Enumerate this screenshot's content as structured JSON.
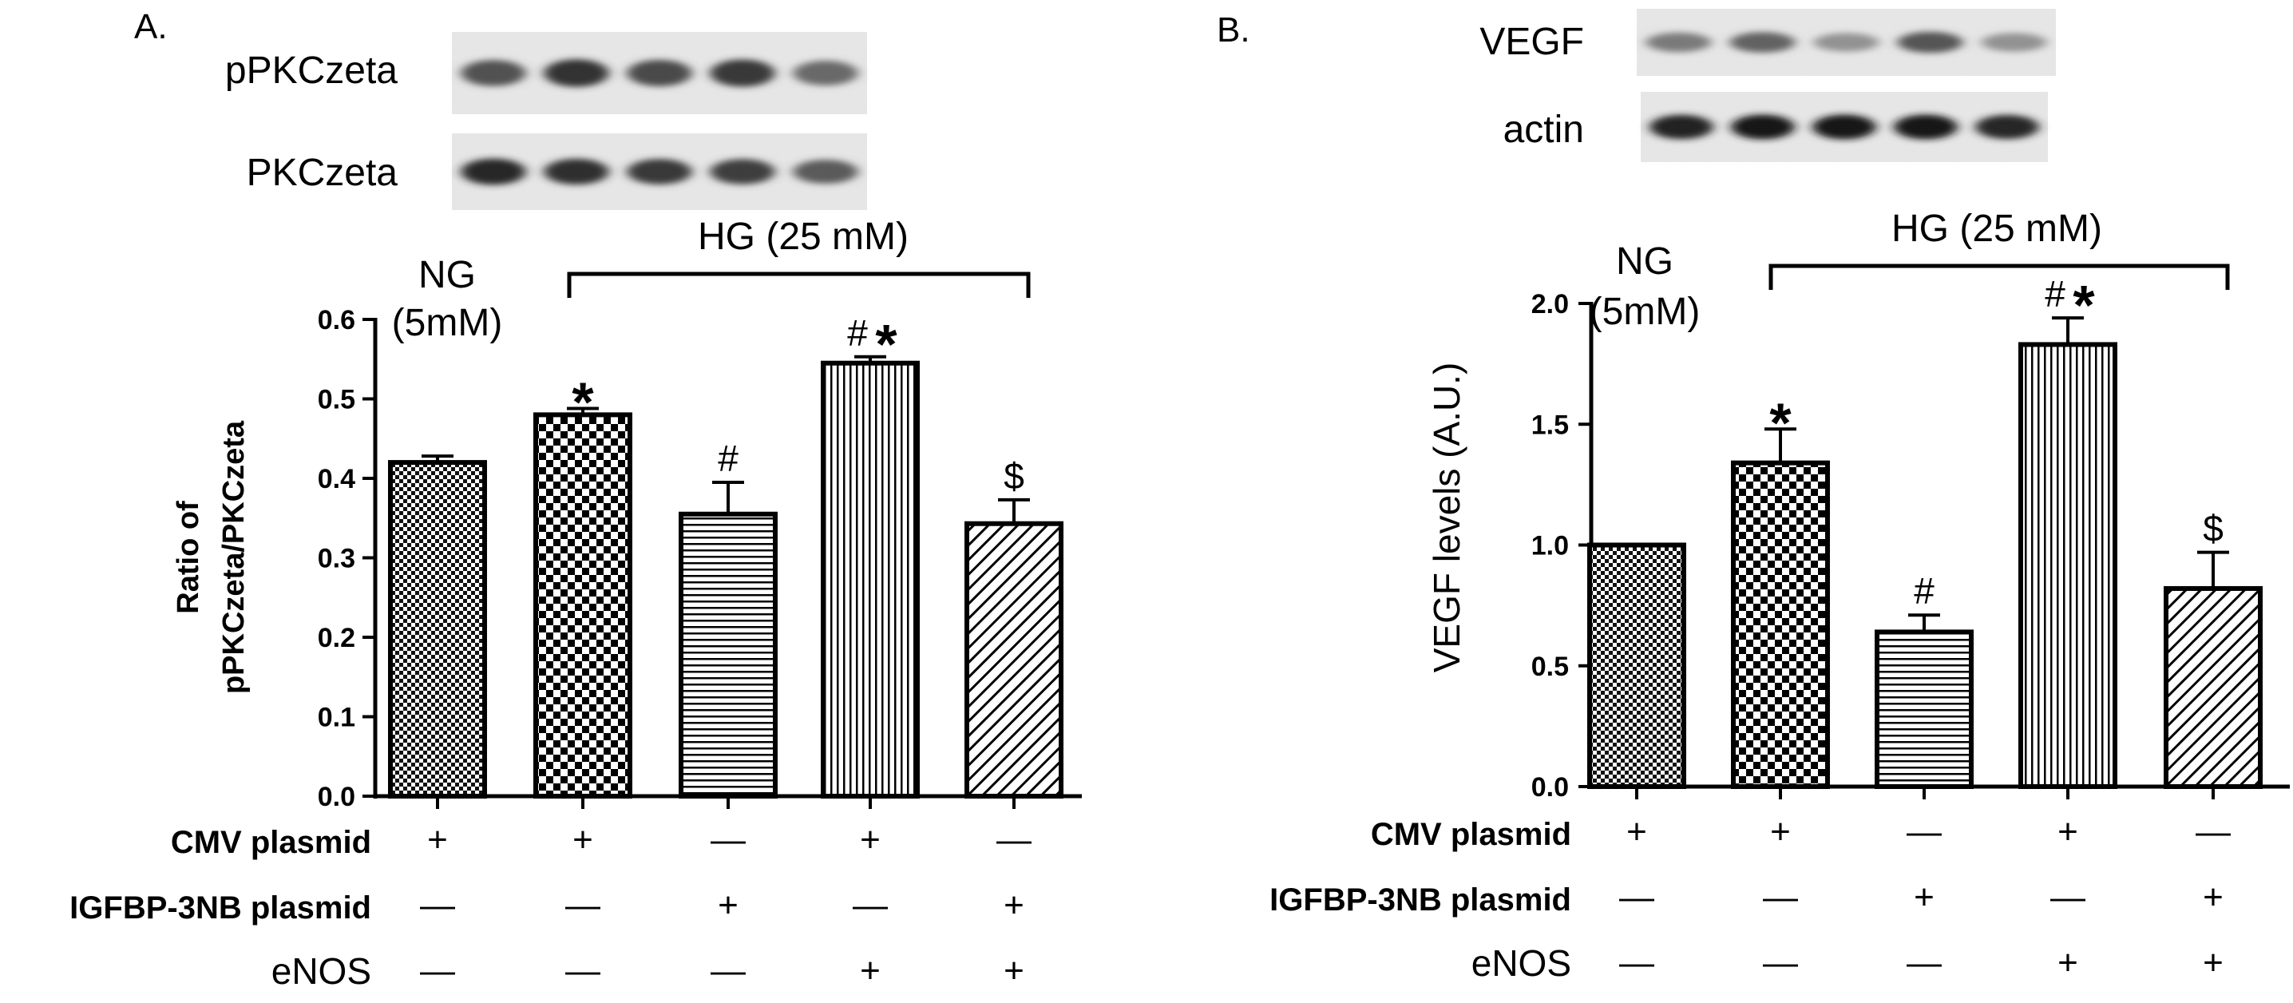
{
  "panels": [
    {
      "id": "A",
      "panel_label": "A.",
      "blots": [
        {
          "label": "pPKCzeta",
          "intensities": [
            0.72,
            0.85,
            0.75,
            0.82,
            0.62
          ]
        },
        {
          "label": "PKCzeta",
          "intensities": [
            0.9,
            0.86,
            0.82,
            0.8,
            0.68
          ]
        }
      ],
      "ng_label": [
        "NG",
        "(5mM)"
      ],
      "hg_label": "HG (25 mM)",
      "rows": [
        {
          "label": "CMV plasmid",
          "bold": true,
          "signs": [
            "+",
            "+",
            "—",
            "+",
            "—"
          ]
        },
        {
          "label": "IGFBP-3NB plasmid",
          "bold": true,
          "signs": [
            "—",
            "—",
            "+",
            "—",
            "+"
          ]
        },
        {
          "label": "eNOS",
          "bold": false,
          "signs": [
            "—",
            "—",
            "—",
            "+",
            "+"
          ]
        }
      ]
    },
    {
      "id": "B",
      "panel_label": "B.",
      "blots": [
        {
          "label": "VEGF",
          "intensities": [
            0.55,
            0.65,
            0.45,
            0.7,
            0.45
          ]
        },
        {
          "label": "actin",
          "intensities": [
            0.92,
            0.95,
            0.95,
            0.95,
            0.9
          ]
        }
      ],
      "ng_label": [
        "NG",
        "(5mM)"
      ],
      "hg_label": "HG (25 mM)",
      "rows": [
        {
          "label": "CMV plasmid",
          "bold": true,
          "signs": [
            "+",
            "+",
            "—",
            "+",
            "—"
          ]
        },
        {
          "label": "IGFBP-3NB plasmid",
          "bold": true,
          "signs": [
            "—",
            "—",
            "+",
            "—",
            "+"
          ]
        },
        {
          "label": "eNOS",
          "bold": false,
          "signs": [
            "—",
            "—",
            "—",
            "+",
            "+"
          ]
        }
      ]
    }
  ],
  "chart_data": [
    {
      "type": "bar",
      "panel": "A",
      "ylabel": "Ratio of pPKCzeta/PKCzeta",
      "ylabel_lines": [
        "Ratio of",
        "pPKCzeta/PKCzeta"
      ],
      "ylim": [
        0,
        0.6
      ],
      "yticks": [
        0.0,
        0.1,
        0.2,
        0.3,
        0.4,
        0.5,
        0.6
      ],
      "ytick_labels": [
        "0.0",
        "0.1",
        "0.2",
        "0.3",
        "0.4",
        "0.5",
        "0.6"
      ],
      "values": [
        0.42,
        0.48,
        0.355,
        0.545,
        0.343
      ],
      "errors": [
        0.008,
        0.008,
        0.04,
        0.008,
        0.03
      ],
      "patterns": [
        "fine-checker",
        "checker",
        "horizontal",
        "vertical",
        "diagonal"
      ],
      "annotations": [
        {
          "bar": 1,
          "text": "*"
        },
        {
          "bar": 2,
          "text": "#"
        },
        {
          "bar": 3,
          "text": "#*"
        },
        {
          "bar": 4,
          "text": "$"
        }
      ]
    },
    {
      "type": "bar",
      "panel": "B",
      "ylabel": "VEGF levels (A.U.)",
      "ylim": [
        0,
        2.0
      ],
      "yticks": [
        0.0,
        0.5,
        1.0,
        1.5,
        2.0
      ],
      "ytick_labels": [
        "0.0",
        "0.5",
        "1.0",
        "1.5",
        "2.0"
      ],
      "values": [
        1.0,
        1.34,
        0.64,
        1.83,
        0.82
      ],
      "errors": [
        0.0,
        0.14,
        0.07,
        0.11,
        0.15
      ],
      "patterns": [
        "fine-checker",
        "checker",
        "horizontal",
        "vertical",
        "diagonal"
      ],
      "annotations": [
        {
          "bar": 1,
          "text": "*"
        },
        {
          "bar": 2,
          "text": "#"
        },
        {
          "bar": 3,
          "text": "#*"
        },
        {
          "bar": 4,
          "text": "$"
        }
      ]
    }
  ]
}
